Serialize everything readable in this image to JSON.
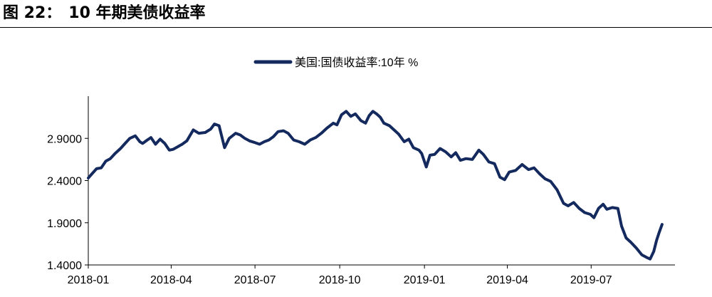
{
  "figure": {
    "number": "图 22：",
    "title": "10 年期美债收益率"
  },
  "chart_data": {
    "type": "line",
    "title": "10 年期美债收益率",
    "xlabel": "",
    "ylabel": "",
    "ylim": [
      1.4,
      3.4
    ],
    "yticks": [
      "1.4000",
      "1.9000",
      "2.4000",
      "2.9000"
    ],
    "ytick_values": [
      1.4,
      1.9,
      2.4,
      2.9
    ],
    "xticks": [
      "2018-01",
      "2018-04",
      "2018-07",
      "2018-10",
      "2019-01",
      "2019-04",
      "2019-07"
    ],
    "xtick_values": [
      "2018-01-01",
      "2018-04-01",
      "2018-07-01",
      "2018-10-01",
      "2019-01-01",
      "2019-04-01",
      "2019-07-01"
    ],
    "xlim": [
      "2018-01-01",
      "2019-09-30"
    ],
    "grid": false,
    "legend_position": "top-center",
    "series": [
      {
        "name": "美国:国债收益率:10年 %",
        "color": "#142a5e",
        "points": [
          [
            "2018-01-01",
            2.43
          ],
          [
            "2018-01-05",
            2.48
          ],
          [
            "2018-01-10",
            2.54
          ],
          [
            "2018-01-15",
            2.55
          ],
          [
            "2018-01-20",
            2.63
          ],
          [
            "2018-01-25",
            2.66
          ],
          [
            "2018-01-30",
            2.72
          ],
          [
            "2018-02-05",
            2.78
          ],
          [
            "2018-02-10",
            2.84
          ],
          [
            "2018-02-15",
            2.9
          ],
          [
            "2018-02-21",
            2.93
          ],
          [
            "2018-02-26",
            2.86
          ],
          [
            "2018-03-01",
            2.84
          ],
          [
            "2018-03-06",
            2.88
          ],
          [
            "2018-03-10",
            2.91
          ],
          [
            "2018-03-15",
            2.83
          ],
          [
            "2018-03-20",
            2.89
          ],
          [
            "2018-03-25",
            2.84
          ],
          [
            "2018-03-30",
            2.76
          ],
          [
            "2018-04-03",
            2.77
          ],
          [
            "2018-04-08",
            2.8
          ],
          [
            "2018-04-13",
            2.83
          ],
          [
            "2018-04-18",
            2.87
          ],
          [
            "2018-04-25",
            3.0
          ],
          [
            "2018-05-01",
            2.96
          ],
          [
            "2018-05-08",
            2.97
          ],
          [
            "2018-05-14",
            3.01
          ],
          [
            "2018-05-18",
            3.07
          ],
          [
            "2018-05-23",
            3.05
          ],
          [
            "2018-05-29",
            2.79
          ],
          [
            "2018-06-03",
            2.9
          ],
          [
            "2018-06-10",
            2.96
          ],
          [
            "2018-06-15",
            2.94
          ],
          [
            "2018-06-20",
            2.9
          ],
          [
            "2018-06-25",
            2.87
          ],
          [
            "2018-07-01",
            2.85
          ],
          [
            "2018-07-06",
            2.83
          ],
          [
            "2018-07-11",
            2.86
          ],
          [
            "2018-07-16",
            2.88
          ],
          [
            "2018-07-21",
            2.92
          ],
          [
            "2018-07-26",
            2.98
          ],
          [
            "2018-08-01",
            2.99
          ],
          [
            "2018-08-06",
            2.96
          ],
          [
            "2018-08-12",
            2.88
          ],
          [
            "2018-08-18",
            2.86
          ],
          [
            "2018-08-24",
            2.83
          ],
          [
            "2018-08-30",
            2.88
          ],
          [
            "2018-09-05",
            2.91
          ],
          [
            "2018-09-11",
            2.96
          ],
          [
            "2018-09-17",
            3.02
          ],
          [
            "2018-09-24",
            3.08
          ],
          [
            "2018-09-28",
            3.06
          ],
          [
            "2018-10-03",
            3.18
          ],
          [
            "2018-10-08",
            3.22
          ],
          [
            "2018-10-13",
            3.16
          ],
          [
            "2018-10-18",
            3.19
          ],
          [
            "2018-10-24",
            3.11
          ],
          [
            "2018-10-29",
            3.08
          ],
          [
            "2018-11-02",
            3.17
          ],
          [
            "2018-11-06",
            3.22
          ],
          [
            "2018-11-10",
            3.19
          ],
          [
            "2018-11-14",
            3.15
          ],
          [
            "2018-11-18",
            3.08
          ],
          [
            "2018-11-24",
            3.05
          ],
          [
            "2018-11-30",
            2.99
          ],
          [
            "2018-12-04",
            2.95
          ],
          [
            "2018-12-10",
            2.86
          ],
          [
            "2018-12-15",
            2.89
          ],
          [
            "2018-12-20",
            2.79
          ],
          [
            "2018-12-26",
            2.76
          ],
          [
            "2018-12-29",
            2.72
          ],
          [
            "2019-01-03",
            2.56
          ],
          [
            "2019-01-07",
            2.7
          ],
          [
            "2019-01-12",
            2.71
          ],
          [
            "2019-01-18",
            2.78
          ],
          [
            "2019-01-24",
            2.74
          ],
          [
            "2019-01-30",
            2.68
          ],
          [
            "2019-02-04",
            2.73
          ],
          [
            "2019-02-09",
            2.64
          ],
          [
            "2019-02-15",
            2.66
          ],
          [
            "2019-02-22",
            2.65
          ],
          [
            "2019-03-01",
            2.76
          ],
          [
            "2019-03-06",
            2.71
          ],
          [
            "2019-03-12",
            2.62
          ],
          [
            "2019-03-18",
            2.6
          ],
          [
            "2019-03-24",
            2.44
          ],
          [
            "2019-03-29",
            2.41
          ],
          [
            "2019-04-03",
            2.5
          ],
          [
            "2019-04-10",
            2.52
          ],
          [
            "2019-04-17",
            2.59
          ],
          [
            "2019-04-24",
            2.53
          ],
          [
            "2019-04-30",
            2.55
          ],
          [
            "2019-05-06",
            2.48
          ],
          [
            "2019-05-12",
            2.42
          ],
          [
            "2019-05-18",
            2.39
          ],
          [
            "2019-05-25",
            2.29
          ],
          [
            "2019-06-01",
            2.13
          ],
          [
            "2019-06-06",
            2.1
          ],
          [
            "2019-06-12",
            2.14
          ],
          [
            "2019-06-18",
            2.07
          ],
          [
            "2019-06-24",
            2.02
          ],
          [
            "2019-06-30",
            2.0
          ],
          [
            "2019-07-04",
            1.96
          ],
          [
            "2019-07-09",
            2.07
          ],
          [
            "2019-07-14",
            2.12
          ],
          [
            "2019-07-18",
            2.06
          ],
          [
            "2019-07-24",
            2.08
          ],
          [
            "2019-07-30",
            2.07
          ],
          [
            "2019-08-03",
            1.86
          ],
          [
            "2019-08-08",
            1.72
          ],
          [
            "2019-08-13",
            1.67
          ],
          [
            "2019-08-19",
            1.6
          ],
          [
            "2019-08-25",
            1.52
          ],
          [
            "2019-08-30",
            1.49
          ],
          [
            "2019-09-03",
            1.47
          ],
          [
            "2019-09-07",
            1.56
          ],
          [
            "2019-09-10",
            1.69
          ],
          [
            "2019-09-13",
            1.79
          ],
          [
            "2019-09-16",
            1.88
          ]
        ]
      }
    ]
  }
}
